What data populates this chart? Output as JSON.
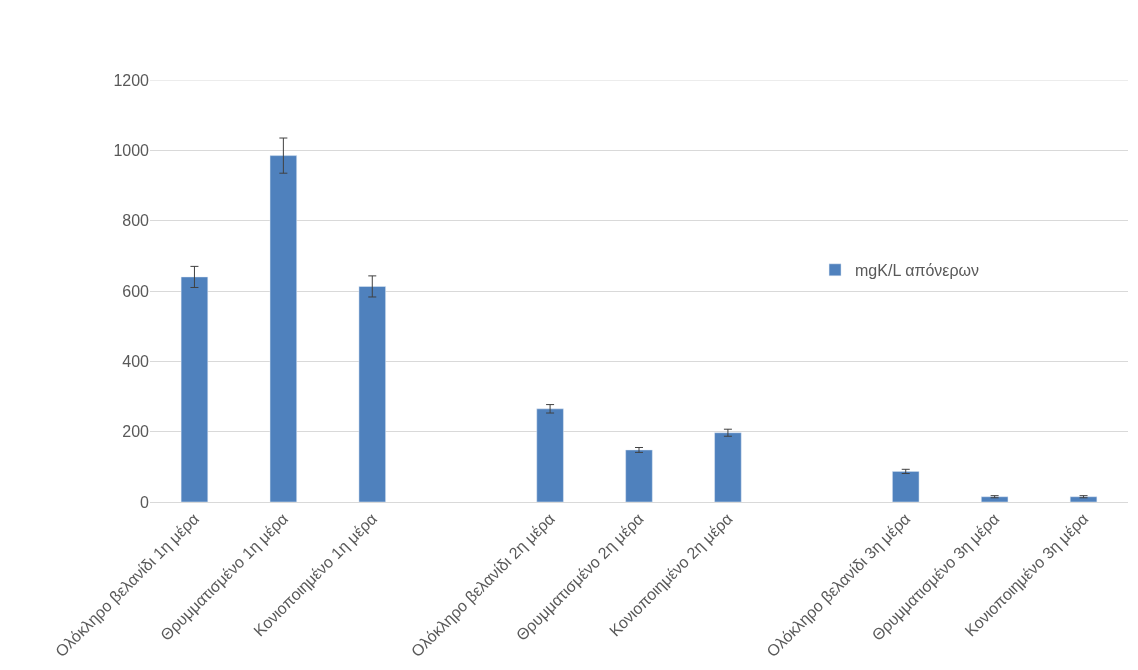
{
  "chart_data": {
    "type": "bar",
    "categories": [
      "Ολόκληρο βελανίδι 1η μέρα",
      "Θρυμματισμένο 1η μέρα",
      "Κονιοποιημένο 1η μέρα",
      null,
      "Ολόκληρο βελανίδι 2η μέρα",
      "Θρυμματισμένο 2η μέρα",
      "Κονιοποιημένο 2η μέρα",
      null,
      "Ολόκληρο βελανίδι 3η μέρα",
      "Θρυμματισμένο 3η μέρα",
      "Κονιοποιημένο 3η μέρα"
    ],
    "series": [
      {
        "name": "mgK/L απόνερων",
        "color": "#4f81bd",
        "values": [
          640,
          985,
          613,
          null,
          265,
          148,
          197,
          null,
          87,
          15,
          15
        ],
        "errors": [
          30,
          50,
          30,
          null,
          12,
          7,
          10,
          null,
          6,
          3,
          3
        ]
      }
    ],
    "ylim": [
      0,
      1200
    ],
    "yticks": [
      0,
      200,
      400,
      600,
      800,
      1000,
      1200
    ],
    "grid": "y",
    "legend": "right"
  }
}
